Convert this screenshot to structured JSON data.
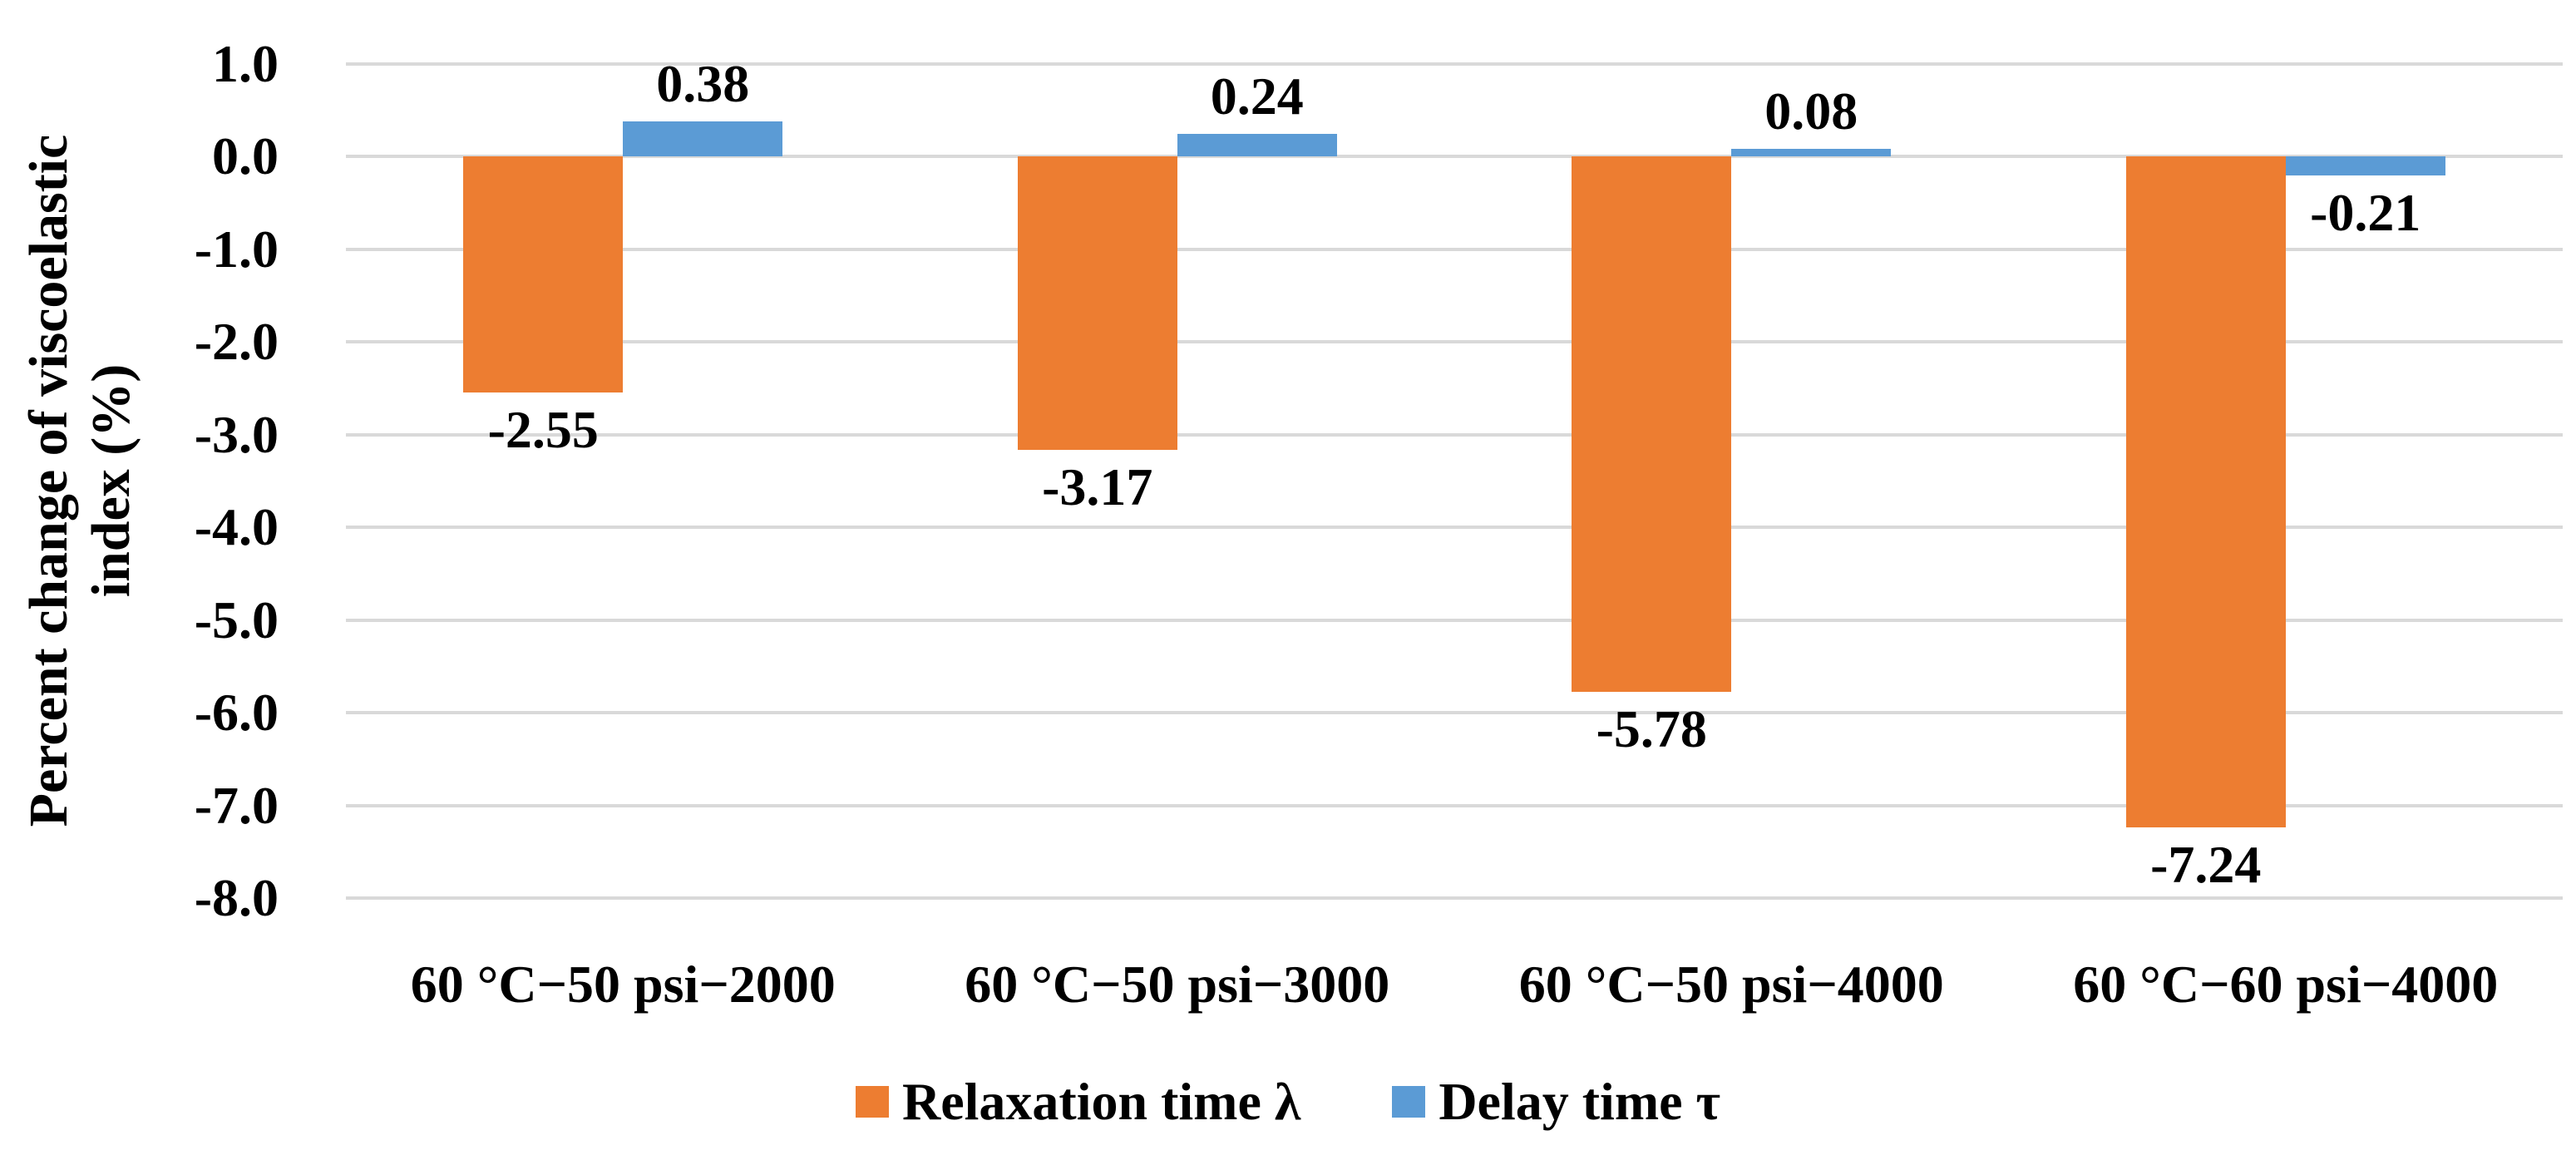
{
  "chart_data": {
    "type": "bar",
    "title": "",
    "categories": [
      "60 °C−50 psi−2000",
      "60 °C−50 psi−3000",
      "60 °C−50 psi−4000",
      "60 °C−60 psi−4000"
    ],
    "series": [
      {
        "name": "Relaxation time λ",
        "color": "#ED7D31",
        "values": [
          -2.55,
          -3.17,
          -5.78,
          -7.24
        ],
        "labels": [
          "-2.55",
          "-3.17",
          "-5.78",
          "-7.24"
        ]
      },
      {
        "name": "Delay time τ",
        "color": "#5B9BD5",
        "values": [
          0.38,
          0.24,
          0.08,
          -0.21
        ],
        "labels": [
          "0.38",
          "0.24",
          "0.08",
          "-0.21"
        ]
      }
    ],
    "ylabel": "Percent change of viscoelastic index (%)",
    "ylabel_lines": [
      "Percent change of viscoelastic",
      "index (%)"
    ],
    "y_ticks": [
      {
        "label": "1.0",
        "value": 1.0
      },
      {
        "label": "0.0",
        "value": 0.0
      },
      {
        "label": "-1.0",
        "value": -1.0
      },
      {
        "label": "-2.0",
        "value": -2.0
      },
      {
        "label": "-3.0",
        "value": -3.0
      },
      {
        "label": "-4.0",
        "value": -4.0
      },
      {
        "label": "-5.0",
        "value": -5.0
      },
      {
        "label": "-6.0",
        "value": -6.0
      },
      {
        "label": "-7.0",
        "value": -7.0
      },
      {
        "label": "-8.0",
        "value": -8.0
      }
    ],
    "ylim": [
      -8.0,
      1.0
    ],
    "grid": true,
    "gridline_color": "#D9D9D9",
    "text_color": "#000000",
    "background": "#FFFFFF",
    "legend_position": "bottom",
    "data_label_position": "outside-end"
  }
}
